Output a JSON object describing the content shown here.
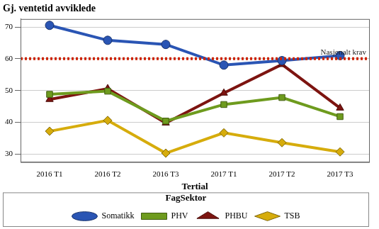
{
  "chart_data": {
    "type": "line",
    "title": "Gj. ventetid avviklede",
    "x_label": "Tertial",
    "categories": [
      "2016 T1",
      "2016 T2",
      "2016 T3",
      "2017 T1",
      "2017 T2",
      "2017 T3"
    ],
    "series": [
      {
        "name": "Somatikk",
        "color": "#2a55b4",
        "marker": "circle",
        "values": [
          70.5,
          65.8,
          64.5,
          58.0,
          59.4,
          61.0
        ]
      },
      {
        "name": "PHV",
        "color": "#6e9b1e",
        "marker": "square",
        "values": [
          48.8,
          49.8,
          40.4,
          45.6,
          47.8,
          41.8
        ]
      },
      {
        "name": "PHBU",
        "color": "#7d1410",
        "marker": "triangle",
        "values": [
          47.2,
          50.6,
          39.8,
          49.2,
          58.2,
          44.5
        ]
      },
      {
        "name": "TSB",
        "color": "#d6ac0c",
        "marker": "diamond",
        "values": [
          37.2,
          40.6,
          30.3,
          36.7,
          33.6,
          30.7
        ]
      }
    ],
    "annotations": [
      {
        "label": "Nasjonalt krav",
        "y": 60,
        "color": "#cc2200",
        "line_style": "dotted"
      }
    ],
    "ylim": [
      27.5,
      72.5
    ],
    "yticks": [
      30,
      40,
      50,
      60,
      70
    ],
    "grid": true,
    "legend": "bottom",
    "legend_title": "FagSektor"
  }
}
